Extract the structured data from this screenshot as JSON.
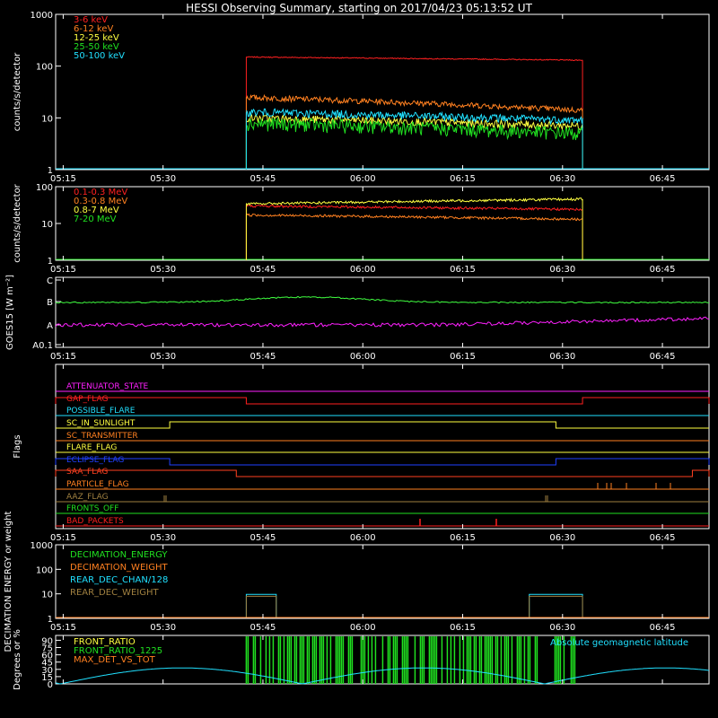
{
  "title": "HESSI Observing Summary, starting on 2017/04/23 05:13:52 UT",
  "x_ticks": [
    "05:15",
    "05:30",
    "05:45",
    "06:00",
    "06:15",
    "06:30",
    "06:45"
  ],
  "chart_data": [
    {
      "type": "line",
      "name": "hessi-low-energy",
      "ylabel": "counts/s/detector",
      "yscale": "log",
      "ylim": [
        1,
        1000
      ],
      "y_ticks": [
        "1",
        "10",
        "100",
        "1000"
      ],
      "x_range": [
        "05:13:52",
        "06:52:00"
      ],
      "data_window": [
        "05:42:30",
        "06:33:00"
      ],
      "legend": [
        {
          "label": "3-6 keV",
          "color": "#ff2020",
          "start": 150,
          "end": 130
        },
        {
          "label": "6-12 keV",
          "color": "#ff8020",
          "start": 25,
          "end": 14
        },
        {
          "label": "12-25 keV",
          "color": "#ffff40",
          "start": 10,
          "end": 7
        },
        {
          "label": "25-50 keV",
          "color": "#20e020",
          "start": 8,
          "end": 5
        },
        {
          "label": "50-100 keV",
          "color": "#20e0ff",
          "start": 13,
          "end": 9
        }
      ]
    },
    {
      "type": "line",
      "name": "hessi-high-energy",
      "ylabel": "counts/s/detector",
      "yscale": "log",
      "ylim": [
        1,
        100
      ],
      "y_ticks": [
        "1",
        "10",
        "100"
      ],
      "data_window": [
        "05:42:30",
        "06:33:00"
      ],
      "legend": [
        {
          "label": "0.1-0.3 MeV",
          "color": "#ff2020",
          "start": 30,
          "end": 24
        },
        {
          "label": "0.3-0.8 MeV",
          "color": "#ff8020",
          "start": 17,
          "end": 13
        },
        {
          "label": "0.8-7 MeV",
          "color": "#ffff40",
          "start": 34,
          "end": 46
        },
        {
          "label": "7-20 MeV",
          "color": "#20e020",
          "start": 1,
          "end": 1
        }
      ]
    },
    {
      "type": "line",
      "name": "goes",
      "ylabel": "GOES15 [W m⁻²]",
      "y_ticks": [
        "A0.1",
        "A",
        "B",
        "C"
      ],
      "series": [
        {
          "name": "long",
          "color": "#40ff40",
          "level": "B"
        },
        {
          "name": "short",
          "color": "#ff20ff",
          "level": "A"
        }
      ]
    },
    {
      "type": "table",
      "name": "flags",
      "ylabel": "Flags",
      "flags": [
        {
          "label": "ATTENUATOR_STATE",
          "color": "#ff20ff"
        },
        {
          "label": "GAP_FLAG",
          "color": "#ff2020"
        },
        {
          "label": "POSSIBLE_FLARE",
          "color": "#20e0ff"
        },
        {
          "label": "SC_IN_SUNLIGHT",
          "color": "#ffff40"
        },
        {
          "label": "SC_TRANSMITTER",
          "color": "#ff8020"
        },
        {
          "label": "FLARE_FLAG",
          "color": "#ffff40"
        },
        {
          "label": "ECLIPSE_FLAG",
          "color": "#2040ff"
        },
        {
          "label": "SAA_FLAG",
          "color": "#ff4020"
        },
        {
          "label": "PARTICLE_FLAG",
          "color": "#ff8020"
        },
        {
          "label": "AAZ_FLAG",
          "color": "#a08040"
        },
        {
          "label": "FRONTS_OFF",
          "color": "#20e020"
        },
        {
          "label": "BAD_PACKETS",
          "color": "#ff2020"
        }
      ]
    },
    {
      "type": "line",
      "name": "decimation",
      "ylabel": "DECIMATION ENERGY or weight",
      "yscale": "log",
      "ylim": [
        1,
        1000
      ],
      "y_ticks": [
        "1",
        "10",
        "100",
        "1000"
      ],
      "legend": [
        {
          "label": "DECIMATION_ENERGY",
          "color": "#20e020"
        },
        {
          "label": "DECIMATION_WEIGHT",
          "color": "#ff8020"
        },
        {
          "label": "REAR_DEC_CHAN/128",
          "color": "#20e0ff"
        },
        {
          "label": "REAR_DEC_WEIGHT",
          "color": "#a08040"
        }
      ]
    },
    {
      "type": "line",
      "name": "ratios",
      "ylabel": "Degrees or %",
      "ylim": [
        0,
        100
      ],
      "y_ticks": [
        "0",
        "15",
        "30",
        "45",
        "60",
        "75",
        "90"
      ],
      "legend": [
        {
          "label": "FRONT_RATIO",
          "color": "#ffff40"
        },
        {
          "label": "FRONT_RATIO_1225",
          "color": "#20e020"
        },
        {
          "label": "MAX_DET_VS_TOT",
          "color": "#ff8020"
        }
      ],
      "right_label": {
        "label": "Absolute geomagnetic latitude",
        "color": "#20e0ff"
      }
    }
  ]
}
